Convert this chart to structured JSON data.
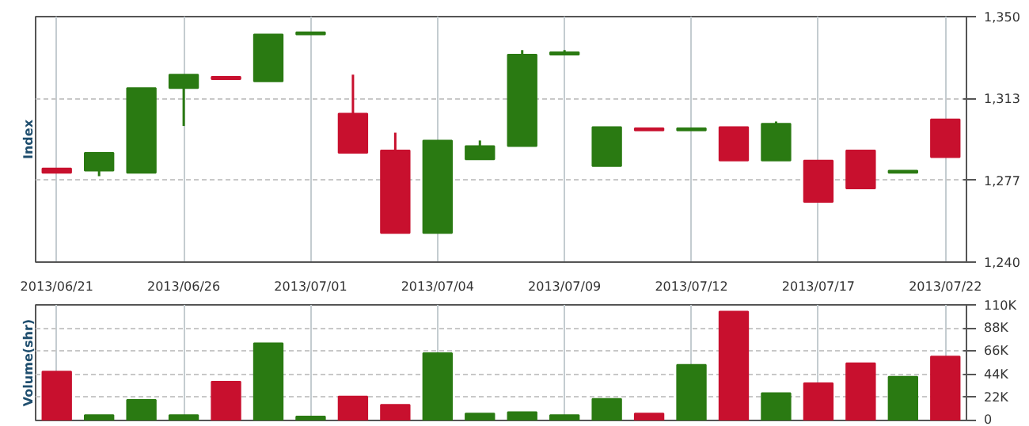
{
  "chart_data": [
    {
      "type": "candlestick",
      "ylabel": "Index",
      "categories": [
        "2013/06/21",
        null,
        null,
        "2013/06/26",
        null,
        null,
        "2013/07/01",
        null,
        null,
        "2013/07/04",
        null,
        null,
        "2013/07/09",
        null,
        null,
        "2013/07/12",
        null,
        null,
        "2013/07/17",
        null,
        null,
        "2013/07/22"
      ],
      "ohlc": [
        [
          1282,
          1282,
          1280,
          1280
        ],
        [
          1281,
          1289,
          1278.5,
          1289
        ],
        [
          1280,
          1318,
          1280,
          1318
        ],
        [
          1318,
          1324,
          1301,
          1324
        ],
        [
          1323,
          1323,
          1322,
          1322
        ],
        [
          1321,
          1342,
          1321,
          1342
        ],
        [
          1342,
          1343,
          1342,
          1343
        ],
        [
          1306.5,
          1324,
          1289,
          1289
        ],
        [
          1290,
          1298,
          1253,
          1253
        ],
        [
          1253,
          1294.5,
          1253,
          1294.5
        ],
        [
          1286,
          1294.5,
          1286,
          1292
        ],
        [
          1292,
          1335,
          1292,
          1333
        ],
        [
          1333,
          1335,
          1333,
          1334
        ],
        [
          1283,
          1300.5,
          1283,
          1300.5
        ],
        [
          1300,
          1300,
          1299,
          1299
        ],
        [
          1299,
          1300,
          1299,
          1300
        ],
        [
          1300.5,
          1300.5,
          1285.5,
          1285.5
        ],
        [
          1285.5,
          1303,
          1285.5,
          1302
        ],
        [
          1285.5,
          1285.5,
          1267,
          1267
        ],
        [
          1290,
          1290,
          1273,
          1273
        ],
        [
          1280,
          1281,
          1280,
          1281
        ],
        [
          1304,
          1304,
          1287,
          1287
        ]
      ],
      "colors": [
        "#c8102e",
        "#2a7a12",
        "#2a7a12",
        "#2a7a12",
        "#c8102e",
        "#2a7a12",
        "#2a7a12",
        "#c8102e",
        "#c8102e",
        "#2a7a12",
        "#2a7a12",
        "#2a7a12",
        "#2a7a12",
        "#2a7a12",
        "#c8102e",
        "#2a7a12",
        "#c8102e",
        "#2a7a12",
        "#c8102e",
        "#c8102e",
        "#2a7a12",
        "#c8102e"
      ],
      "ylim": [
        1240,
        1350
      ],
      "yticks": [
        {
          "value": 1240,
          "label": "1,240"
        },
        {
          "value": 1276.7,
          "label": "1,277"
        },
        {
          "value": 1313.3,
          "label": "1,313"
        },
        {
          "value": 1350,
          "label": "1,350"
        }
      ],
      "grid": true
    },
    {
      "type": "bar",
      "ylabel": "Volume(shr)",
      "categories": [
        "2013/06/21",
        null,
        null,
        "2013/06/26",
        null,
        null,
        "2013/07/01",
        null,
        null,
        "2013/07/04",
        null,
        null,
        "2013/07/09",
        null,
        null,
        "2013/07/12",
        null,
        null,
        "2013/07/17",
        null,
        null,
        "2013/07/22"
      ],
      "values": [
        46500,
        5000,
        19600,
        5000,
        37000,
        73500,
        3700,
        22700,
        14800,
        64000,
        6500,
        8000,
        5000,
        20600,
        6500,
        52900,
        103600,
        25900,
        35400,
        54500,
        41700,
        60800
      ],
      "colors": [
        "#c8102e",
        "#2a7a12",
        "#2a7a12",
        "#2a7a12",
        "#c8102e",
        "#2a7a12",
        "#2a7a12",
        "#c8102e",
        "#c8102e",
        "#2a7a12",
        "#2a7a12",
        "#2a7a12",
        "#2a7a12",
        "#2a7a12",
        "#c8102e",
        "#2a7a12",
        "#c8102e",
        "#2a7a12",
        "#c8102e",
        "#c8102e",
        "#2a7a12",
        "#c8102e"
      ],
      "ylim": [
        0,
        110000
      ],
      "yticks": [
        {
          "value": 0,
          "label": "0"
        },
        {
          "value": 22000,
          "label": "22K"
        },
        {
          "value": 44000,
          "label": "44K"
        },
        {
          "value": 66000,
          "label": "66K"
        },
        {
          "value": 88000,
          "label": "88K"
        },
        {
          "value": 110000,
          "label": "110K"
        }
      ],
      "grid": true,
      "tick_labels": "y"
    }
  ]
}
